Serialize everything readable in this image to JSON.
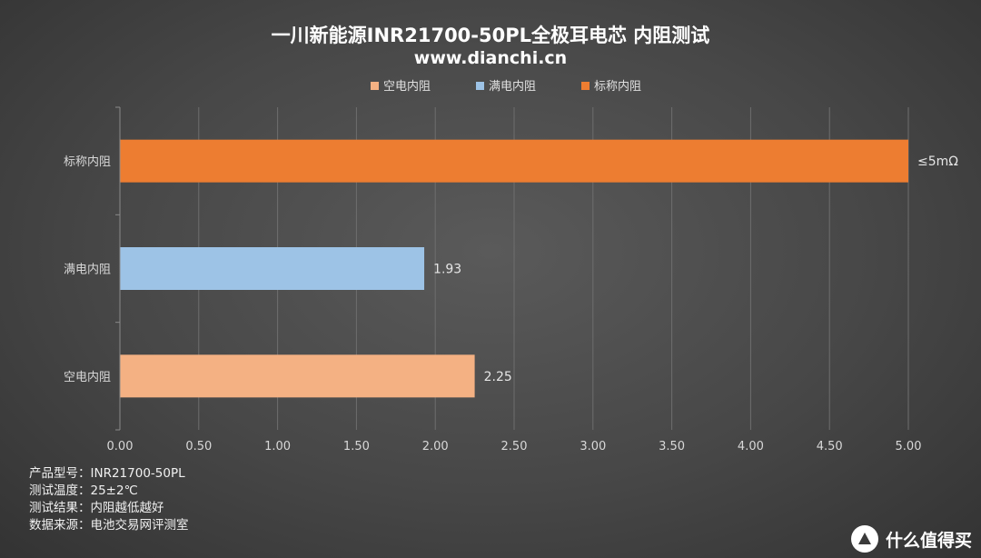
{
  "chart_data": {
    "type": "bar",
    "orientation": "horizontal",
    "title": "一川新能源INR21700-50PL全极耳电芯 内阻测试",
    "subtitle": "www.dianchi.cn",
    "categories": [
      "标称内阻",
      "满电内阻",
      "空电内阻"
    ],
    "values": [
      5.0,
      1.93,
      2.25
    ],
    "data_labels": [
      "≤5mΩ",
      "1.93",
      "2.25"
    ],
    "colors": [
      "#ed7d31",
      "#9dc3e6",
      "#f4b183"
    ],
    "legend": [
      {
        "label": "空电内阻",
        "color": "#f4b183"
      },
      {
        "label": "满电内阻",
        "color": "#9dc3e6"
      },
      {
        "label": "标称内阻",
        "color": "#ed7d31"
      }
    ],
    "legend_position": "top",
    "xlim": [
      0,
      5
    ],
    "xticks": [
      "0.00",
      "0.50",
      "1.00",
      "1.50",
      "2.00",
      "2.50",
      "3.00",
      "3.50",
      "4.00",
      "4.50",
      "5.00"
    ],
    "grid": true
  },
  "notes": [
    "产品型号：INR21700-50PL",
    "测试温度：25±2℃",
    "测试结果：内阻越低越好",
    "数据来源：电池交易网评测室"
  ],
  "watermark": {
    "text": "什么值得买",
    "icon": "smzdm-logo-icon"
  }
}
